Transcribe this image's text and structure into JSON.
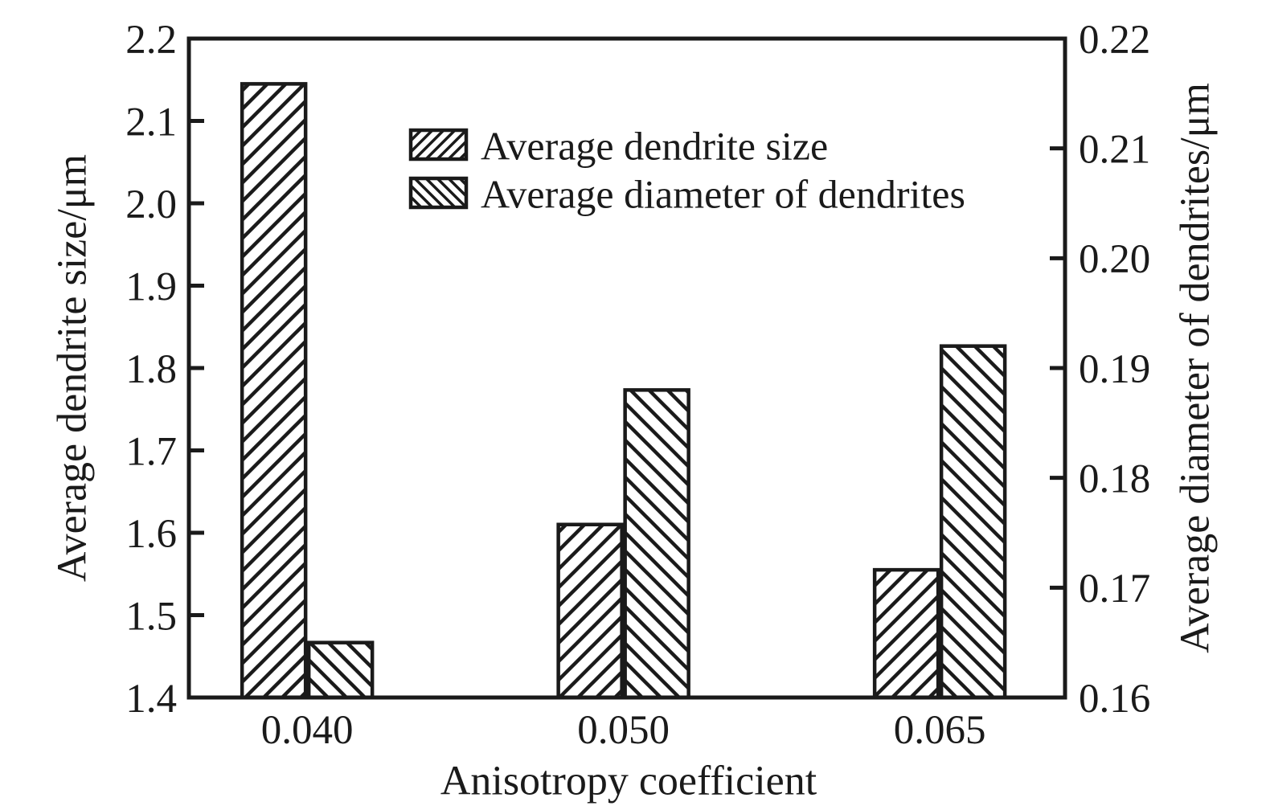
{
  "figure": {
    "background": "#ffffff",
    "ink_color": "#1a1a1a"
  },
  "chart_data": {
    "type": "bar",
    "title": "",
    "xlabel": "Anisotropy coefficient",
    "categories": [
      "0.040",
      "0.050",
      "0.065"
    ],
    "series": [
      {
        "name": "Average dendrite size",
        "axis": "left",
        "hatch": "forward-diagonal",
        "values": [
          2.145,
          1.61,
          1.555
        ]
      },
      {
        "name": "Average diameter of dendrites",
        "axis": "right",
        "hatch": "backward-diagonal",
        "values": [
          0.165,
          0.188,
          0.192
        ]
      }
    ],
    "left_axis": {
      "label": "Average dendrite size/μm",
      "lim": [
        1.4,
        2.2
      ],
      "tick_step": 0.1,
      "ticks": [
        "1.4",
        "1.5",
        "1.6",
        "1.7",
        "1.8",
        "1.9",
        "2.0",
        "2.1",
        "2.2"
      ]
    },
    "right_axis": {
      "label": "Average diameter of dendrites/μm",
      "lim": [
        0.16,
        0.22
      ],
      "tick_step": 0.01,
      "ticks": [
        "0.16",
        "0.17",
        "0.18",
        "0.19",
        "0.20",
        "0.21",
        "0.22"
      ]
    },
    "legend": {
      "position": "upper-left-inside",
      "entries": [
        "Average dendrite size",
        "Average diameter of dendrites"
      ]
    },
    "grid": false,
    "bar_style": "white fill with black hatching, black outline"
  }
}
